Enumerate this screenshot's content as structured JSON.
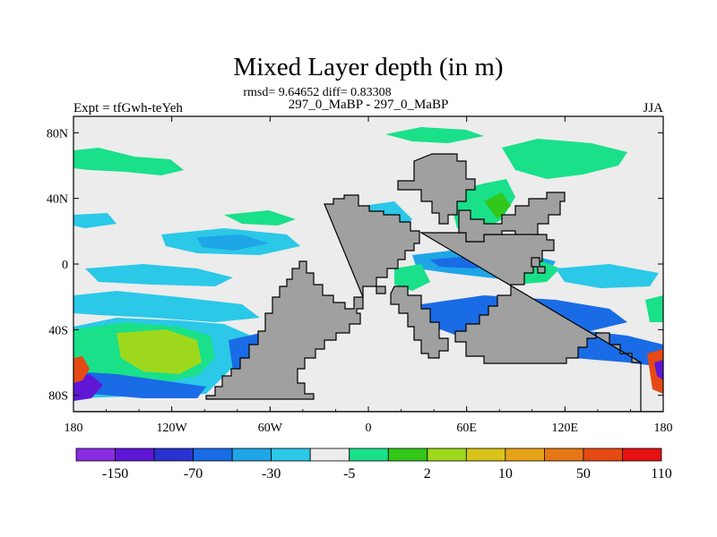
{
  "title": "Mixed Layer depth (in m)",
  "stats": "rmsd= 9.64652 diff= 0.83308",
  "comparison": "297_0_MaBP - 297_0_MaBP",
  "experiment": "Expt = tfGwh-teYeh",
  "season": "JJA",
  "chart_data": {
    "type": "heatmap",
    "variable": "Mixed Layer depth difference",
    "units": "m",
    "lon_range": [
      -180,
      180
    ],
    "lat_range": [
      -90,
      90
    ],
    "x_ticks": [
      "180",
      "120W",
      "60W",
      "0",
      "60E",
      "120E",
      "180"
    ],
    "y_ticks": [
      "80N",
      "40N",
      "0",
      "40S",
      "80S"
    ],
    "colorbar": {
      "labels": [
        "-150",
        "-70",
        "-30",
        "-5",
        "2",
        "10",
        "50",
        "110"
      ],
      "colors": [
        "#8a2be2",
        "#5f17d6",
        "#2a33cf",
        "#1a6be6",
        "#1ea5e6",
        "#2bc8e8",
        "#ececec",
        "#19e089",
        "#31c81a",
        "#9ed81c",
        "#d8c418",
        "#e6a317",
        "#e67716",
        "#e64a14",
        "#e61212"
      ]
    },
    "land_color": "#a0a0a0"
  }
}
